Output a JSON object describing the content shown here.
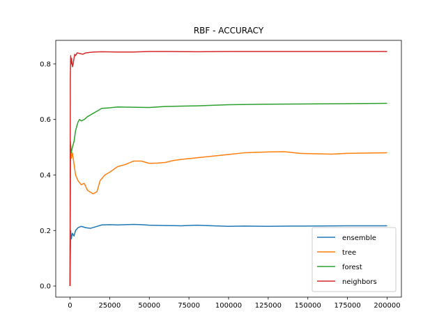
{
  "chart_data": {
    "type": "line",
    "title": "RBF - ACCURACY",
    "xlabel": "",
    "ylabel": "",
    "xlim": [
      -9000,
      209000
    ],
    "ylim": [
      -0.04,
      0.885
    ],
    "xticks": [
      0,
      25000,
      50000,
      75000,
      100000,
      125000,
      150000,
      175000,
      200000
    ],
    "xtick_labels": [
      "0",
      "25000",
      "50000",
      "75000",
      "100000",
      "125000",
      "150000",
      "175000",
      "200000"
    ],
    "yticks": [
      0.0,
      0.2,
      0.4,
      0.6,
      0.8
    ],
    "ytick_labels": [
      "0.0",
      "0.2",
      "0.4",
      "0.6",
      "0.8"
    ],
    "grid": false,
    "legend_position": "lower-right",
    "series": [
      {
        "name": "ensemble",
        "color": "#1f77b4",
        "x": [
          0,
          400,
          800,
          1500,
          2500,
          3500,
          5000,
          7000,
          10000,
          13000,
          17000,
          20000,
          25000,
          30000,
          40000,
          45000,
          50000,
          60000,
          70000,
          80000,
          90000,
          100000,
          110000,
          125000,
          140000,
          150000,
          175000,
          200000
        ],
        "y": [
          0.0,
          0.2,
          0.17,
          0.19,
          0.18,
          0.2,
          0.21,
          0.215,
          0.21,
          0.208,
          0.215,
          0.22,
          0.221,
          0.22,
          0.222,
          0.221,
          0.219,
          0.218,
          0.217,
          0.219,
          0.217,
          0.215,
          0.216,
          0.215,
          0.216,
          0.216,
          0.217,
          0.217
        ]
      },
      {
        "name": "tree",
        "color": "#ff7f0e",
        "x": [
          0,
          300,
          800,
          1500,
          2500,
          3500,
          5000,
          7000,
          9000,
          11000,
          13000,
          14500,
          17000,
          19000,
          22000,
          25000,
          30000,
          35000,
          40000,
          45000,
          50000,
          55000,
          60000,
          65000,
          70000,
          80000,
          100000,
          110000,
          125000,
          135000,
          145000,
          150000,
          165000,
          175000,
          200000
        ],
        "y": [
          0.0,
          0.52,
          0.46,
          0.48,
          0.44,
          0.4,
          0.38,
          0.365,
          0.37,
          0.345,
          0.338,
          0.332,
          0.34,
          0.38,
          0.4,
          0.41,
          0.43,
          0.438,
          0.45,
          0.45,
          0.442,
          0.443,
          0.445,
          0.452,
          0.456,
          0.462,
          0.474,
          0.48,
          0.483,
          0.484,
          0.478,
          0.477,
          0.475,
          0.478,
          0.48
        ]
      },
      {
        "name": "forest",
        "color": "#2ca02c",
        "x": [
          0,
          300,
          800,
          1500,
          2500,
          3500,
          5000,
          6000,
          7000,
          9000,
          11000,
          14000,
          17000,
          20000,
          25000,
          30000,
          40000,
          50000,
          60000,
          80000,
          100000,
          125000,
          150000,
          175000,
          200000
        ],
        "y": [
          0.0,
          0.51,
          0.48,
          0.5,
          0.52,
          0.56,
          0.59,
          0.6,
          0.595,
          0.6,
          0.61,
          0.62,
          0.63,
          0.64,
          0.642,
          0.645,
          0.644,
          0.643,
          0.647,
          0.649,
          0.653,
          0.655,
          0.656,
          0.657,
          0.658
        ]
      },
      {
        "name": "neighbors",
        "color": "#d62728",
        "x": [
          0,
          200,
          400,
          700,
          1000,
          1500,
          2000,
          2500,
          3000,
          3500,
          4500,
          6000,
          8000,
          10000,
          15000,
          20000,
          30000,
          40000,
          50000,
          60000,
          80000,
          100000,
          125000,
          150000,
          175000,
          200000
        ],
        "y": [
          0.0,
          0.75,
          0.83,
          0.8,
          0.82,
          0.79,
          0.8,
          0.82,
          0.835,
          0.83,
          0.84,
          0.838,
          0.835,
          0.84,
          0.843,
          0.844,
          0.843,
          0.843,
          0.845,
          0.845,
          0.844,
          0.845,
          0.845,
          0.845,
          0.845,
          0.845
        ]
      }
    ]
  }
}
